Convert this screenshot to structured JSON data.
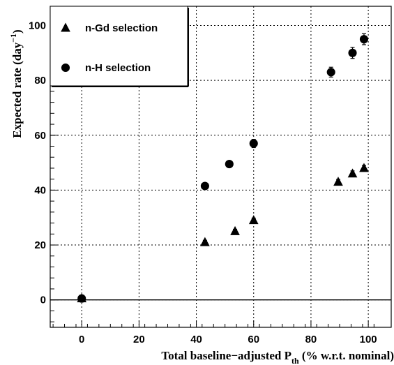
{
  "chart_data": {
    "type": "scatter",
    "xlabel": {
      "main": "Total baseline−adjusted P",
      "sub": "th",
      "tail": " (% w.r.t. nominal)"
    },
    "ylabel": {
      "main": "Expected rate (day",
      "sup": "−1",
      "tail": ")"
    },
    "xlim": [
      -11,
      108
    ],
    "ylim": [
      -10,
      107
    ],
    "xticks": [
      0,
      20,
      40,
      60,
      80,
      100
    ],
    "yticks": [
      0,
      20,
      40,
      60,
      80,
      100
    ],
    "grid": true,
    "legend": {
      "placement": "top-left",
      "entries": [
        {
          "marker": "triangle",
          "label": "n-Gd selection"
        },
        {
          "marker": "circle",
          "label": "n-H selection"
        }
      ]
    },
    "series": [
      {
        "marker": "triangle",
        "points": [
          {
            "x": 0,
            "y": 0.5,
            "err": 0.5
          },
          {
            "x": 43,
            "y": 21,
            "err": 0.7
          },
          {
            "x": 53.5,
            "y": 25,
            "err": 0.7
          },
          {
            "x": 60,
            "y": 29,
            "err": 0.8
          },
          {
            "x": 89.5,
            "y": 43,
            "err": 0.9
          },
          {
            "x": 94.5,
            "y": 46,
            "err": 1.0
          },
          {
            "x": 98.5,
            "y": 48,
            "err": 1.0
          }
        ]
      },
      {
        "marker": "circle",
        "points": [
          {
            "x": 0,
            "y": 0.5,
            "err": 0.8
          },
          {
            "x": 43,
            "y": 41.5,
            "err": 0.8
          },
          {
            "x": 51.5,
            "y": 49.5,
            "err": 1.0
          },
          {
            "x": 60,
            "y": 57,
            "err": 1.5
          },
          {
            "x": 87,
            "y": 83,
            "err": 1.8
          },
          {
            "x": 94.5,
            "y": 90,
            "err": 2.0
          },
          {
            "x": 98.5,
            "y": 95,
            "err": 2.0
          }
        ]
      }
    ]
  }
}
